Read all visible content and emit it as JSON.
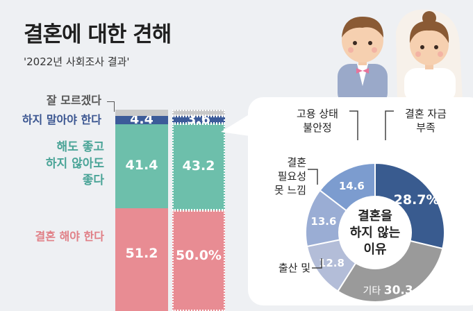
{
  "header": {
    "title": "결혼에 대한 견해",
    "subtitle": "'2022년 사회조사 결과'"
  },
  "colors": {
    "should_marry": "#e88c93",
    "either": "#6dbfab",
    "should_not": "#3c5b99",
    "unsure": "#c9c9c9",
    "donut_funding": "#395b8f",
    "donut_other": "#9a9a9a",
    "donut_childbirth": "#b3bdd8",
    "donut_notneeded": "#9aadd4",
    "donut_job": "#7c9ccf"
  },
  "chart_data": [
    {
      "type": "bar",
      "stacked": true,
      "categories": [
        "",
        ""
      ],
      "series": [
        {
          "name": "결혼 해야 한다",
          "values": [
            51.2,
            50.0
          ],
          "labels": [
            "51.2",
            "50.0%"
          ]
        },
        {
          "name": "해도 좋고 하지 않아도 좋다",
          "values": [
            41.4,
            43.2
          ],
          "labels": [
            "41.4",
            "43.2"
          ]
        },
        {
          "name": "하지 말아야 한다",
          "values": [
            4.4,
            3.6
          ],
          "labels": [
            "4.4",
            "3.6"
          ]
        },
        {
          "name": "잘 모르겠다",
          "values": [
            3.0,
            3.2
          ],
          "labels": [
            "",
            ""
          ]
        }
      ],
      "series_labels_display": {
        "unsure": "잘 모르겠다",
        "should_not": "하지 말아야 한다",
        "either_line1": "해도 좋고",
        "either_line2": "하지 않아도",
        "either_line3": "좋다",
        "should": "결혼 해야 한다"
      },
      "ylim": [
        0,
        100
      ]
    },
    {
      "type": "pie",
      "donut": true,
      "center_label": [
        "결혼을",
        "하지 않는",
        "이유"
      ],
      "slices": [
        {
          "name": "결혼 자금 부족",
          "value": 28.7,
          "label": "28.7%",
          "display": [
            "결혼 자금",
            "부족"
          ]
        },
        {
          "name": "기타",
          "value": 30.3,
          "label": "30.3",
          "display": [
            "기타"
          ]
        },
        {
          "name": "출산 및",
          "value": 12.8,
          "label": "12.8",
          "display": [
            "출산 및"
          ]
        },
        {
          "name": "결혼 필요성 못 느낌",
          "value": 13.6,
          "label": "13.6",
          "display": [
            "결혼",
            "필요성",
            "못 느낌"
          ]
        },
        {
          "name": "고용 상태 불안정",
          "value": 14.6,
          "label": "14.6",
          "display": [
            "고용 상태",
            "불안정"
          ]
        }
      ]
    }
  ]
}
